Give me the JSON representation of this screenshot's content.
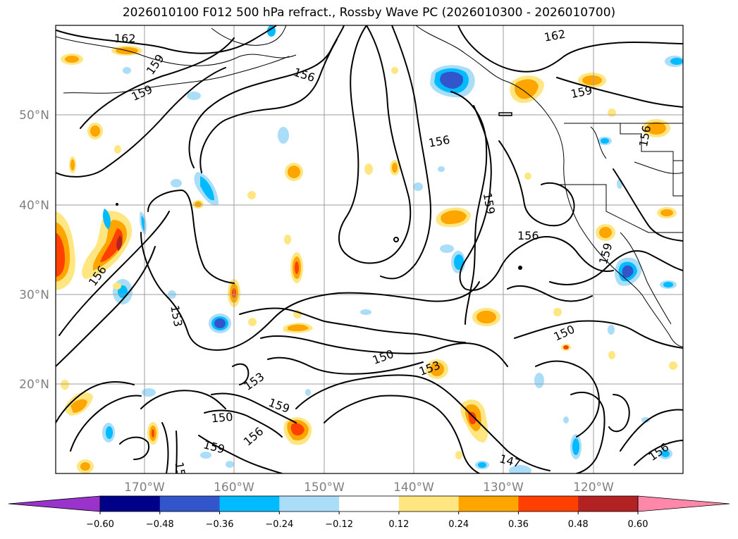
{
  "title": "2026010100 F012 500 hPa refract., Rossby Wave PC (2026010300 - 2026010700)",
  "lat_labels": [
    "50°N",
    "40°N",
    "30°N",
    "20°N"
  ],
  "lon_labels": [
    "170°W",
    "160°W",
    "150°W",
    "140°W",
    "130°W",
    "120°W"
  ],
  "contour_labels": [
    "162",
    "159",
    "159",
    "156",
    "156",
    "159",
    "156",
    "162",
    "159",
    "156",
    "159",
    "156",
    "153",
    "150",
    "153",
    "153",
    "150",
    "159",
    "150",
    "156",
    "159",
    "150",
    "147",
    "156",
    "150",
    "156"
  ],
  "colorbar": {
    "ticks": [
      "−0.60",
      "−0.48",
      "−0.36",
      "−0.24",
      "−0.12",
      "0.12",
      "0.24",
      "0.36",
      "0.48",
      "0.60"
    ],
    "colors": [
      "#9933cc",
      "#000088",
      "#3355cc",
      "#00bbff",
      "#aaddf8",
      "#ffffff",
      "#ffe680",
      "#ffa500",
      "#ff4000",
      "#b22222",
      "#ff88aa"
    ]
  }
}
